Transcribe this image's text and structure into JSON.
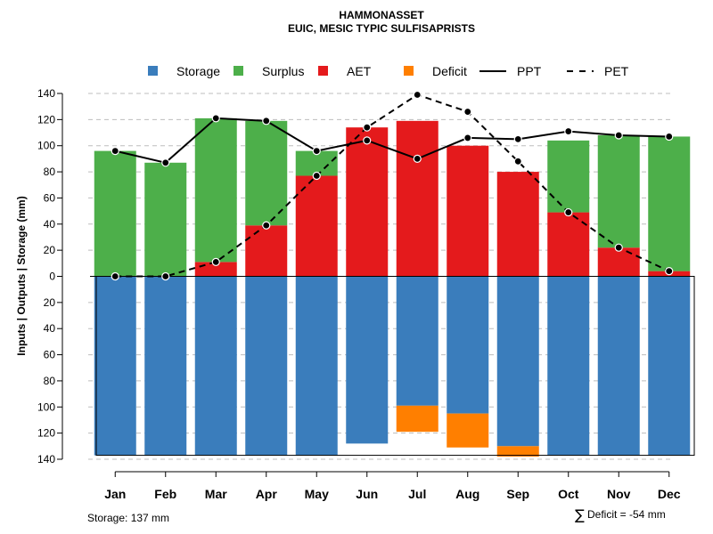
{
  "chart_data": {
    "type": "bar",
    "title": "HAMMONASSET",
    "subtitle": "EUIC, MESIC TYPIC SULFISAPRISTS",
    "ylabel": "Inputs | Outputs | Storage    (mm)",
    "ylim": [
      -140,
      140
    ],
    "yticks": [
      140,
      120,
      100,
      80,
      60,
      40,
      20,
      0,
      -20,
      -40,
      -60,
      -80,
      -100,
      -120,
      -140
    ],
    "ytick_labels": [
      "140",
      "120",
      "100",
      "80",
      "60",
      "40",
      "20",
      "0",
      "20",
      "40",
      "60",
      "80",
      "100",
      "120",
      "140"
    ],
    "categories": [
      "Jan",
      "Feb",
      "Mar",
      "Apr",
      "May",
      "Jun",
      "Jul",
      "Aug",
      "Sep",
      "Oct",
      "Nov",
      "Dec"
    ],
    "legend": [
      "Storage",
      "Surplus",
      "AET",
      "Deficit",
      "PPT",
      "PET"
    ],
    "colors": {
      "Storage": "#3a7dbc",
      "Surplus": "#4daf4a",
      "AET": "#e41a1c",
      "Deficit": "#ff7f00",
      "PPT": "#000000",
      "PET": "#000000"
    },
    "series": [
      {
        "name": "AET",
        "values": [
          0,
          0,
          11,
          39,
          77,
          114,
          119,
          100,
          80,
          49,
          22,
          4
        ]
      },
      {
        "name": "Surplus",
        "values": [
          96,
          87,
          110,
          80,
          19,
          0,
          0,
          0,
          0,
          55,
          86,
          103
        ]
      },
      {
        "name": "Storage",
        "values": [
          137,
          137,
          137,
          137,
          137,
          128,
          99,
          105,
          130,
          137,
          137,
          137
        ]
      },
      {
        "name": "Deficit",
        "values": [
          0,
          0,
          0,
          0,
          0,
          0,
          20,
          26,
          8,
          0,
          0,
          0
        ]
      },
      {
        "name": "PPT",
        "values": [
          96,
          87,
          121,
          119,
          96,
          104,
          90,
          106,
          105,
          111,
          108,
          107
        ]
      },
      {
        "name": "PET",
        "values": [
          0,
          0,
          11,
          39,
          77,
          114,
          139,
          126,
          88,
          49,
          22,
          4
        ]
      }
    ],
    "storage_capacity": 137,
    "annotations": {
      "storage": "Storage: 137 mm",
      "deficit_symbol": "∑",
      "deficit": "Deficit = -54 mm"
    }
  }
}
